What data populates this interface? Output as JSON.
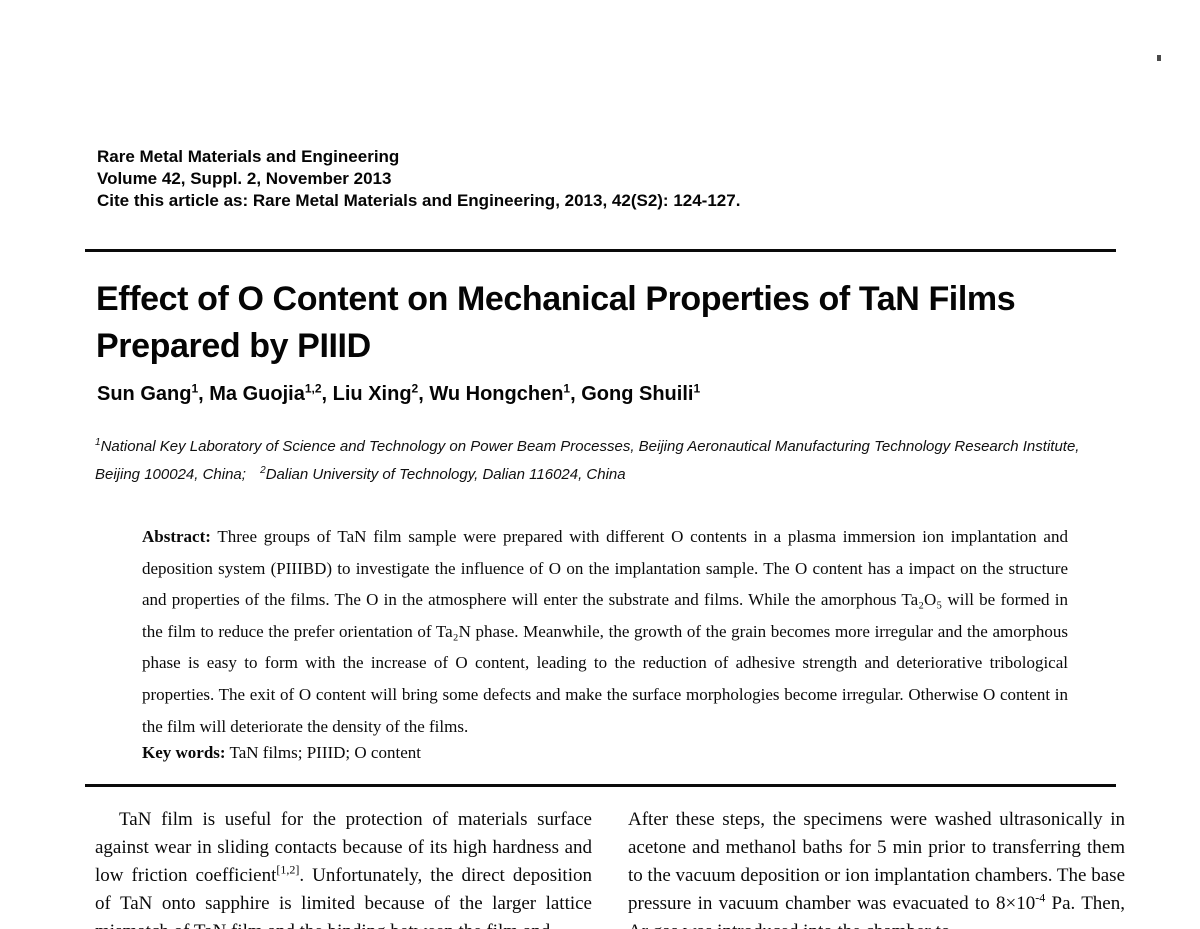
{
  "journal_header": {
    "line1": "Rare Metal Materials and Engineering",
    "line2": "Volume 42, Suppl. 2, November 2013",
    "line3": "Cite this article as: Rare Metal Materials and Engineering, 2013, 42(S2): 124-127."
  },
  "title": {
    "line1": "Effect of O Content on Mechanical Properties of TaN Films",
    "line2": "Prepared by PIIID"
  },
  "authors": [
    {
      "name": "Sun Gang",
      "sup": "1",
      "sep": ", "
    },
    {
      "name": "Ma Guojia",
      "sup": "1,2",
      "sep": ", "
    },
    {
      "name": "Liu Xing",
      "sup": "2",
      "sep": ", "
    },
    {
      "name": "Wu Hongchen",
      "sup": "1",
      "sep": ", "
    },
    {
      "name": "Gong Shuili",
      "sup": "1",
      "sep": ""
    }
  ],
  "affiliations": [
    {
      "sup": "1",
      "text": "National Key Laboratory of Science and Technology on Power Beam Processes, Beijing Aeronautical Manufacturing Technology Research Institute, Beijing 100024, China;"
    },
    {
      "sup": "2",
      "text": "Dalian University of Technology, Dalian 116024, China"
    }
  ],
  "abstract": {
    "label": "Abstract:",
    "text": "Three groups of TaN film sample were prepared with different O contents in a plasma immersion ion implantation and deposition system (PIIIBD) to investigate the influence of O on the implantation sample. The O content has a impact on the structure and properties of the films. The O in the atmosphere will enter the substrate and films. While the amorphous Ta₂O₅ will be formed in the film to reduce the prefer orientation of Ta₂N phase. Meanwhile, the growth of the grain becomes more irregular and the amorphous phase is easy to form with the increase of O content, leading to the reduction of adhesive strength and deteriorative tribological properties. The exit of O content will bring some defects and make the surface morphologies become irregular. Otherwise O content in the film will deteriorate the density of the films."
  },
  "keywords": {
    "label": "Key words:",
    "text": "TaN films; PIIID; O content"
  },
  "body": {
    "left": {
      "part1": "TaN film is useful for the protection of materials surface against wear in sliding contacts because of its high hardness and low friction coefficient",
      "sup": "[1,2]",
      "part2": ". Unfortunately, the direct deposition of TaN onto sapphire is limited because of the larger lattice mismatch of TaN film and the binding between the film and"
    },
    "right": {
      "part1": "After these steps, the specimens were washed ultrasonically in acetone and methanol baths for 5 min prior to transferring them to the vacuum deposition or ion implantation chambers. The base pressure in vacuum chamber was evacuated to 8×10",
      "sup": "-4",
      "part2": " Pa. Then, Ar gas was introduced into the chamber to"
    }
  }
}
